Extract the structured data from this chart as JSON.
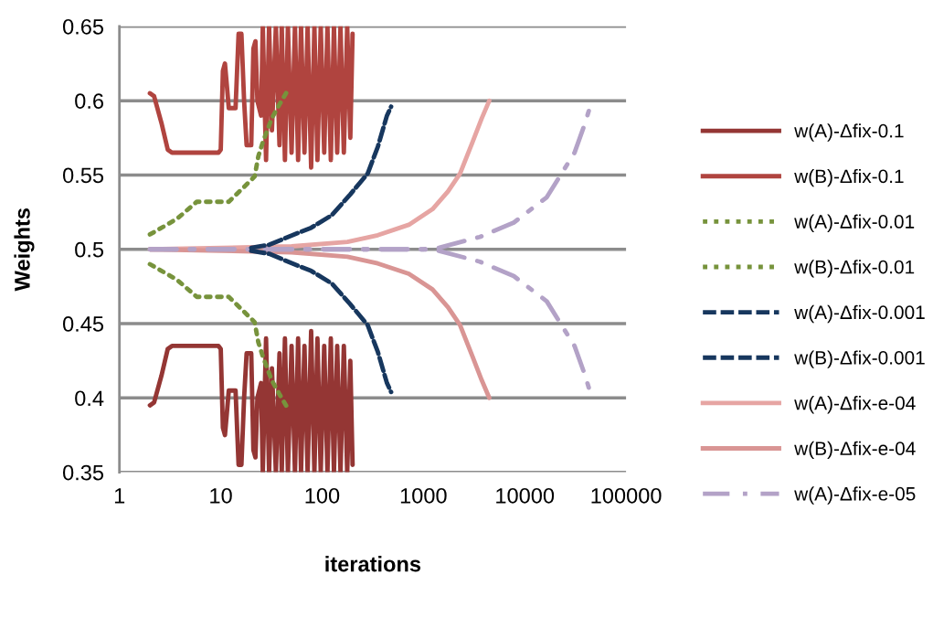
{
  "chart_data": {
    "type": "line",
    "xlabel": "iterations",
    "ylabel": "Weights",
    "log": "x",
    "xlim": [
      1,
      100000
    ],
    "xticks": [
      1,
      10,
      100,
      1000,
      10000,
      100000
    ],
    "ylim": [
      0.35,
      0.65
    ],
    "yticks": [
      0.35,
      0.4,
      0.45,
      0.5,
      0.55,
      0.6,
      0.65
    ],
    "grid": "y",
    "legend": "right",
    "marker": "none",
    "series": [
      {
        "name": "w(A)-Δfix-0.1",
        "color": "#943634",
        "line_style": "solid",
        "x": [
          2,
          2.2,
          2.6,
          3,
          3.3,
          9.5,
          10,
          10.5,
          11,
          11.5,
          12,
          14,
          15,
          16,
          17,
          18,
          20,
          21,
          22,
          23,
          25,
          26,
          28,
          30,
          32,
          35,
          38,
          40,
          43,
          46,
          50,
          54,
          58,
          62,
          67,
          72,
          78,
          84,
          90,
          97,
          105,
          113,
          122,
          131,
          141,
          152,
          164,
          177,
          190,
          200
        ],
        "values": [
          0.395,
          0.397,
          0.415,
          0.433,
          0.435,
          0.435,
          0.433,
          0.38,
          0.375,
          0.39,
          0.405,
          0.405,
          0.355,
          0.355,
          0.4,
          0.43,
          0.43,
          0.365,
          0.36,
          0.4,
          0.41,
          0.35,
          0.44,
          0.35,
          0.42,
          0.35,
          0.43,
          0.35,
          0.44,
          0.35,
          0.435,
          0.35,
          0.44,
          0.35,
          0.435,
          0.35,
          0.445,
          0.35,
          0.44,
          0.35,
          0.435,
          0.35,
          0.44,
          0.35,
          0.435,
          0.35,
          0.435,
          0.35,
          0.425,
          0.355
        ]
      },
      {
        "name": "w(B)-Δfix-0.1",
        "color": "#b0443f",
        "line_style": "solid",
        "x": [
          2,
          2.2,
          2.6,
          3,
          3.3,
          9.5,
          10,
          10.5,
          11,
          11.5,
          12,
          14,
          15,
          16,
          17,
          18,
          20,
          21,
          22,
          23,
          25,
          26,
          28,
          30,
          32,
          35,
          38,
          40,
          43,
          46,
          50,
          54,
          58,
          62,
          67,
          72,
          78,
          84,
          90,
          97,
          105,
          113,
          122,
          131,
          141,
          152,
          164,
          177,
          190,
          200
        ],
        "values": [
          0.605,
          0.603,
          0.585,
          0.567,
          0.565,
          0.565,
          0.567,
          0.62,
          0.625,
          0.61,
          0.595,
          0.595,
          0.645,
          0.645,
          0.6,
          0.57,
          0.57,
          0.635,
          0.64,
          0.6,
          0.59,
          0.65,
          0.56,
          0.65,
          0.58,
          0.65,
          0.57,
          0.65,
          0.56,
          0.65,
          0.565,
          0.65,
          0.56,
          0.65,
          0.565,
          0.65,
          0.555,
          0.65,
          0.56,
          0.65,
          0.565,
          0.65,
          0.56,
          0.65,
          0.565,
          0.65,
          0.565,
          0.65,
          0.575,
          0.645
        ]
      },
      {
        "name": "w(A)-Δfix-0.01",
        "color": "#77933c",
        "line_style": "dotted",
        "x": [
          2,
          3.7,
          5.8,
          12,
          17,
          21.6,
          23.5,
          26,
          31.8,
          37.6,
          44.6
        ],
        "values": [
          0.51,
          0.5205,
          0.532,
          0.532,
          0.542,
          0.549,
          0.5626,
          0.572,
          0.588,
          0.597,
          0.6056
        ]
      },
      {
        "name": "w(B)-Δfix-0.01",
        "color": "#77933c",
        "line_style": "dotted",
        "x": [
          2,
          3.7,
          5.8,
          12,
          17,
          21.6,
          23.5,
          26,
          31.8,
          37.6,
          44.6
        ],
        "values": [
          0.49,
          0.4795,
          0.468,
          0.468,
          0.458,
          0.451,
          0.4374,
          0.428,
          0.412,
          0.403,
          0.3944
        ]
      },
      {
        "name": "w(A)-Δfix-0.001",
        "color": "#17375e",
        "line_style": "dashed",
        "x": [
          20,
          30,
          45,
          78,
          125,
          190,
          282,
          355,
          437,
          480
        ],
        "values": [
          0.501,
          0.503,
          0.508,
          0.5145,
          0.523,
          0.537,
          0.551,
          0.569,
          0.59,
          0.596
        ]
      },
      {
        "name": "w(B)-Δfix-0.001",
        "color": "#17375e",
        "line_style": "dashed",
        "x": [
          20,
          30,
          45,
          78,
          125,
          190,
          282,
          355,
          437,
          480
        ],
        "values": [
          0.499,
          0.497,
          0.492,
          0.4855,
          0.477,
          0.463,
          0.449,
          0.431,
          0.41,
          0.404
        ]
      },
      {
        "name": "w(A)-Δfix-e-04",
        "color": "#e6a5a3",
        "line_style": "solid",
        "x": [
          2,
          50,
          178,
          355,
          718,
          1230,
          1750,
          2300,
          3050,
          3760,
          4470
        ],
        "values": [
          0.5,
          0.502,
          0.505,
          0.5095,
          0.5165,
          0.527,
          0.539,
          0.551,
          0.572,
          0.588,
          0.6
        ]
      },
      {
        "name": "w(B)-Δfix-e-04",
        "color": "#d99594",
        "line_style": "solid",
        "x": [
          2,
          50,
          178,
          355,
          718,
          1230,
          1750,
          2300,
          3050,
          3760,
          4470
        ],
        "values": [
          0.5,
          0.498,
          0.495,
          0.4905,
          0.4835,
          0.473,
          0.461,
          0.449,
          0.428,
          0.412,
          0.4
        ]
      },
      {
        "name": "w(A)-Δfix-e-05",
        "color": "#b3a2c7",
        "line_style": "dashdot",
        "x": [
          2,
          100,
          1000,
          1420,
          3600,
          7800,
          16500,
          31000,
          39500,
          46000
        ],
        "values": [
          0.5,
          0.5,
          0.5,
          0.501,
          0.5083,
          0.518,
          0.535,
          0.565,
          0.585,
          0.6
        ]
      },
      {
        "color": "#b3a2c7",
        "line_style": "dashdot",
        "x": [
          2,
          100,
          1000,
          1420,
          3600,
          7800,
          16500,
          31000,
          39500,
          46000
        ],
        "values": [
          0.5,
          0.5,
          0.5,
          0.499,
          0.4917,
          0.482,
          0.465,
          0.435,
          0.415,
          0.4
        ]
      }
    ]
  }
}
